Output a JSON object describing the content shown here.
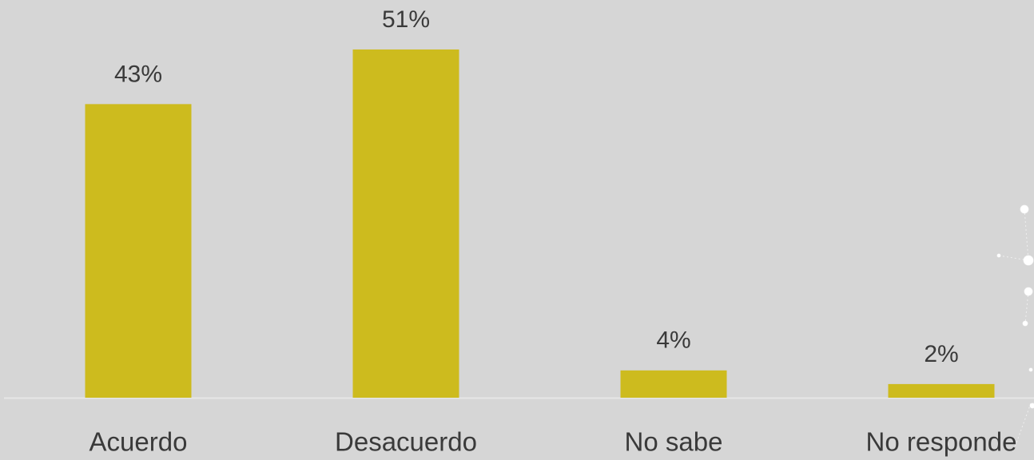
{
  "chart_data": {
    "type": "bar",
    "categories": [
      "Acuerdo",
      "Desacuerdo",
      "No sabe",
      "No responde"
    ],
    "values": [
      43,
      51,
      4,
      2
    ],
    "value_labels": [
      "43%",
      "51%",
      "4%",
      "2%"
    ],
    "color": "#cdbb1e"
  }
}
